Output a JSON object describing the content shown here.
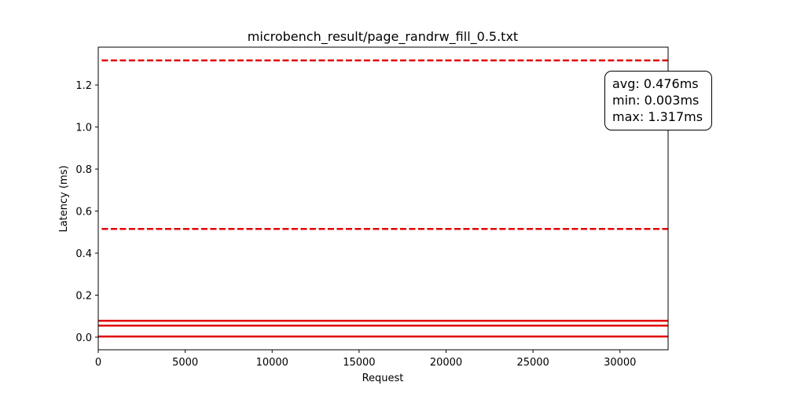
{
  "chart_data": {
    "type": "line",
    "title": "microbench_result/page_randrw_fill_0.5.txt",
    "xlabel": "Request",
    "ylabel": "Latency (ms)",
    "xlim": [
      0,
      32768
    ],
    "ylim": [
      -0.06,
      1.38
    ],
    "x_ticks": [
      0,
      5000,
      10000,
      15000,
      20000,
      25000,
      30000
    ],
    "y_ticks": [
      0.0,
      0.2,
      0.4,
      0.6,
      0.8,
      1.0,
      1.2
    ],
    "x_tick_labels": [
      "0",
      "5000",
      "10000",
      "15000",
      "20000",
      "25000",
      "30000"
    ],
    "y_tick_labels": [
      "0.0",
      "0.2",
      "0.4",
      "0.6",
      "0.8",
      "1.0",
      "1.2"
    ],
    "grid": false,
    "series": [
      {
        "style": "solid",
        "color": "#e00000",
        "x": [
          0,
          32768
        ],
        "values": [
          0.003,
          0.003
        ]
      },
      {
        "style": "solid",
        "color": "#e00000",
        "x": [
          0,
          32768
        ],
        "values": [
          0.055,
          0.055
        ]
      },
      {
        "style": "solid",
        "color": "#e00000",
        "x": [
          0,
          32768
        ],
        "values": [
          0.078,
          0.078
        ]
      },
      {
        "style": "dashed",
        "color": "#e00000",
        "x": [
          200,
          32768
        ],
        "values": [
          0.515,
          0.515
        ]
      },
      {
        "style": "dashed",
        "color": "#e00000",
        "x": [
          200,
          32768
        ],
        "values": [
          1.317,
          1.317
        ]
      }
    ],
    "annotations": {
      "avg": "avg: 0.476ms",
      "min": "min: 0.003ms",
      "max": "max: 1.317ms",
      "placement": "top-right"
    }
  }
}
